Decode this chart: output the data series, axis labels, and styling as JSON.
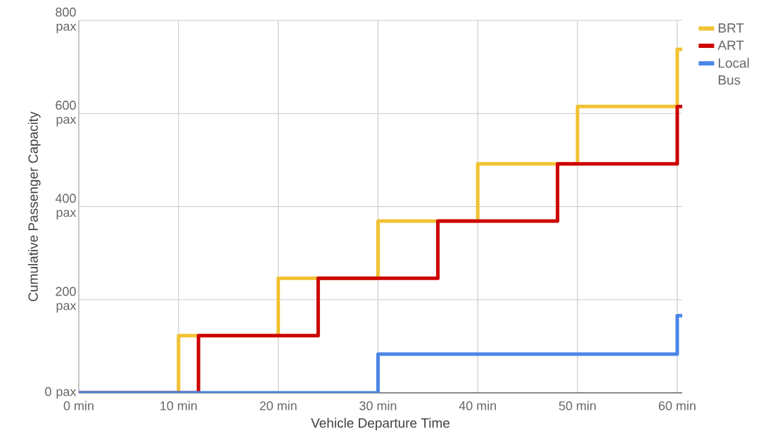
{
  "chart_data": {
    "type": "step",
    "xlabel": "Vehicle Departure Time",
    "ylabel": "Cumulative Passenger Capacity",
    "xlim": [
      0,
      60.5
    ],
    "ylim": [
      0,
      800
    ],
    "xticks": [
      {
        "value": 0,
        "label": "0 min"
      },
      {
        "value": 10,
        "label": "10 min"
      },
      {
        "value": 20,
        "label": "20 min"
      },
      {
        "value": 30,
        "label": "30 min"
      },
      {
        "value": 40,
        "label": "40 min"
      },
      {
        "value": 50,
        "label": "50 min"
      },
      {
        "value": 60,
        "label": "60 min"
      }
    ],
    "yticks": [
      {
        "value": 0,
        "label": "0 pax"
      },
      {
        "value": 200,
        "label": "200 pax"
      },
      {
        "value": 400,
        "label": "400 pax"
      },
      {
        "value": 600,
        "label": "600 pax"
      },
      {
        "value": 800,
        "label": "800 pax"
      }
    ],
    "grid": true,
    "legend": "right",
    "marker": "none",
    "line_style": "solid",
    "series": [
      {
        "name": "BRT",
        "color": "#f1c232",
        "x": [
          0,
          10,
          20,
          30,
          40,
          50,
          60,
          60.5
        ],
        "values": [
          0,
          123,
          246,
          369,
          492,
          615,
          738,
          738
        ]
      },
      {
        "name": "ART",
        "color": "#cc0000",
        "x": [
          0,
          12,
          24,
          36,
          48,
          60,
          60.5
        ],
        "values": [
          0,
          123,
          246,
          369,
          492,
          615,
          615
        ]
      },
      {
        "name": "Local Bus",
        "color": "#4a86e8",
        "x": [
          0,
          30,
          60,
          60.5
        ],
        "values": [
          0,
          83,
          166,
          166
        ]
      }
    ]
  }
}
